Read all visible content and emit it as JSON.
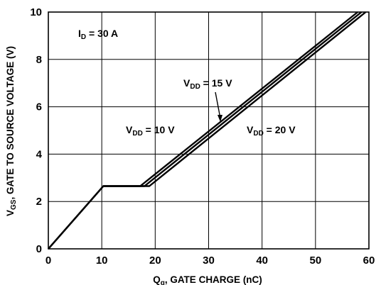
{
  "chart_data": {
    "type": "line",
    "xlabel_main": "Q",
    "xlabel_sub": "g",
    "xlabel_rest": ", GATE CHARGE (nC)",
    "ylabel_main": "V",
    "ylabel_sub": "GS",
    "ylabel_rest": ", GATE TO SOURCE VOLTAGE (V)",
    "xlim": [
      0,
      60
    ],
    "ylim": [
      0,
      10
    ],
    "xticks": [
      "0",
      "10",
      "20",
      "30",
      "40",
      "50",
      "60"
    ],
    "yticks": [
      "0",
      "2",
      "4",
      "6",
      "8",
      "10"
    ],
    "grid": true,
    "annotations": {
      "id": {
        "main": "I",
        "sub": "D",
        "rest": " = 30 A"
      },
      "vdd10": {
        "main": "V",
        "sub": "DD",
        "rest": " = 10 V"
      },
      "vdd15": {
        "main": "V",
        "sub": "DD",
        "rest": " = 15 V"
      },
      "vdd20": {
        "main": "V",
        "sub": "DD",
        "rest": " = 20 V"
      }
    },
    "series": [
      {
        "key": "vdd10",
        "points": [
          [
            0,
            0
          ],
          [
            10.3,
            2.65
          ],
          [
            17.2,
            2.65
          ],
          [
            57.9,
            10
          ]
        ]
      },
      {
        "key": "vdd15",
        "points": [
          [
            0,
            0
          ],
          [
            10.3,
            2.65
          ],
          [
            18.0,
            2.65
          ],
          [
            58.6,
            10
          ]
        ]
      },
      {
        "key": "vdd20",
        "points": [
          [
            0,
            0
          ],
          [
            10.3,
            2.65
          ],
          [
            18.9,
            2.65
          ],
          [
            59.4,
            10
          ]
        ]
      }
    ],
    "colors": {
      "line": "#000000",
      "grid": "#000000"
    }
  }
}
